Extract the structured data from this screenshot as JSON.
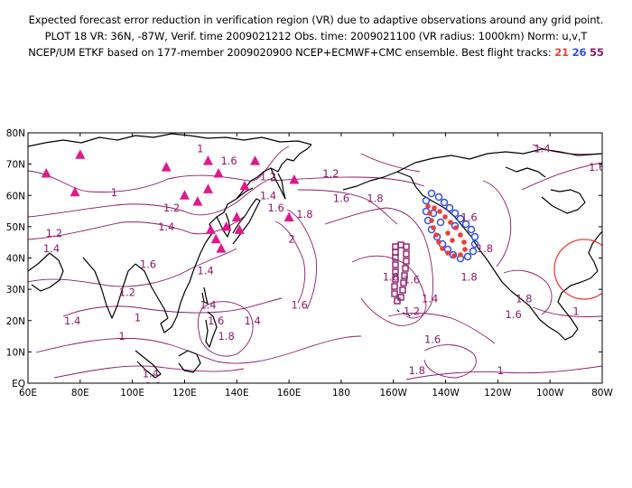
{
  "header": {
    "line1": "Expected forecast error reduction in verification region (VR) due to adaptive observations around any grid point.",
    "line2": "PLOT 18 VR: 36N, -87W, Verif. time 2009021212 Obs. time: 2009021100 (VR radius: 1000km) Norm: u,v,T",
    "line3_prefix": "NCEP/UM ETKF based on 177-member 2009020900 NCEP+ECMWF+CMC ensemble. Best flight tracks:",
    "tracks": [
      {
        "label": "21",
        "color": "#e8403a"
      },
      {
        "label": "26",
        "color": "#3050e0"
      },
      {
        "label": "55",
        "color": "#8b1a6b"
      }
    ]
  },
  "map": {
    "lat_labels": [
      "EQ",
      "10N",
      "20N",
      "30N",
      "40N",
      "50N",
      "60N",
      "70N",
      "80N"
    ],
    "lon_labels": [
      "60E",
      "80E",
      "100E",
      "120E",
      "140E",
      "160E",
      "180",
      "160W",
      "140W",
      "120W",
      "100W",
      "80W"
    ],
    "contour_labels": [
      {
        "text": "1",
        "lon": 126,
        "lat": 75
      },
      {
        "text": "1",
        "lon": 93,
        "lat": 61
      },
      {
        "text": "1.2",
        "lon": 115,
        "lat": 56
      },
      {
        "text": "1.4",
        "lon": 113,
        "lat": 50
      },
      {
        "text": "1.2",
        "lon": 70,
        "lat": 48
      },
      {
        "text": "1.4",
        "lon": 69,
        "lat": 43
      },
      {
        "text": "1.6",
        "lon": 106,
        "lat": 38
      },
      {
        "text": "1.4",
        "lon": 128,
        "lat": 36
      },
      {
        "text": "1.2",
        "lon": 98,
        "lat": 29
      },
      {
        "text": "1",
        "lon": 102,
        "lat": 21
      },
      {
        "text": "1.4",
        "lon": 77,
        "lat": 20
      },
      {
        "text": "1",
        "lon": 96,
        "lat": 15
      },
      {
        "text": "1.4",
        "lon": 129,
        "lat": 25
      },
      {
        "text": "1.6",
        "lon": 132,
        "lat": 20
      },
      {
        "text": "1.8",
        "lon": 136,
        "lat": 15
      },
      {
        "text": "1.4",
        "lon": 107,
        "lat": 3
      },
      {
        "text": "1.2",
        "lon": 108,
        "lat": -1
      },
      {
        "text": "1.4",
        "lon": 146,
        "lat": 20
      },
      {
        "text": "1.6",
        "lon": 137,
        "lat": 71
      },
      {
        "text": "1.2",
        "lon": 152,
        "lat": 66
      },
      {
        "text": "1.4",
        "lon": 152,
        "lat": 60
      },
      {
        "text": "1.6",
        "lon": 155,
        "lat": 56
      },
      {
        "text": "1.8",
        "lon": 166,
        "lat": 54
      },
      {
        "text": "2",
        "lon": 161,
        "lat": 46
      },
      {
        "text": "1.6",
        "lon": 164,
        "lat": 25
      },
      {
        "text": "1.2",
        "lon": 176,
        "lat": 67
      },
      {
        "text": "1.6",
        "lon": 180,
        "lat": 59
      },
      {
        "text": "1.8",
        "lon": -167,
        "lat": 59
      },
      {
        "text": "1.8",
        "lon": -161,
        "lat": 34
      },
      {
        "text": "1.6",
        "lon": -153,
        "lat": 33
      },
      {
        "text": "1.4",
        "lon": -146,
        "lat": 27
      },
      {
        "text": "1.2",
        "lon": -153,
        "lat": 23
      },
      {
        "text": "1.6",
        "lon": -131,
        "lat": 53
      },
      {
        "text": "1.8",
        "lon": -125,
        "lat": 43
      },
      {
        "text": "1.8",
        "lon": -131,
        "lat": 34
      },
      {
        "text": "1.6",
        "lon": -145,
        "lat": 14
      },
      {
        "text": "1.8",
        "lon": -151,
        "lat": 4
      },
      {
        "text": "1",
        "lon": -119,
        "lat": 4
      },
      {
        "text": "1.8",
        "lon": -110,
        "lat": 27
      },
      {
        "text": "1.6",
        "lon": -114,
        "lat": 22
      },
      {
        "text": "1.4",
        "lon": -103,
        "lat": 75
      },
      {
        "text": "1.6",
        "lon": -82,
        "lat": 69
      },
      {
        "text": "1",
        "lon": -90,
        "lat": 23
      }
    ],
    "triangle_sites": [
      {
        "lon": 67,
        "lat": 67
      },
      {
        "lon": 80,
        "lat": 73
      },
      {
        "lon": 78,
        "lat": 61
      },
      {
        "lon": 113,
        "lat": 69
      },
      {
        "lon": 120,
        "lat": 60
      },
      {
        "lon": 125,
        "lat": 58
      },
      {
        "lon": 129,
        "lat": 62
      },
      {
        "lon": 129,
        "lat": 71
      },
      {
        "lon": 133,
        "lat": 67
      },
      {
        "lon": 147,
        "lat": 71
      },
      {
        "lon": 143,
        "lat": 63
      },
      {
        "lon": 162,
        "lat": 65
      },
      {
        "lon": 130,
        "lat": 49
      },
      {
        "lon": 136,
        "lat": 50
      },
      {
        "lon": 140,
        "lat": 53
      },
      {
        "lon": 141,
        "lat": 49
      },
      {
        "lon": 132,
        "lat": 46
      },
      {
        "lon": 134,
        "lat": 43
      },
      {
        "lon": 160,
        "lat": 53
      }
    ],
    "verification_region": {
      "lat": 36,
      "lon": -87
    }
  }
}
